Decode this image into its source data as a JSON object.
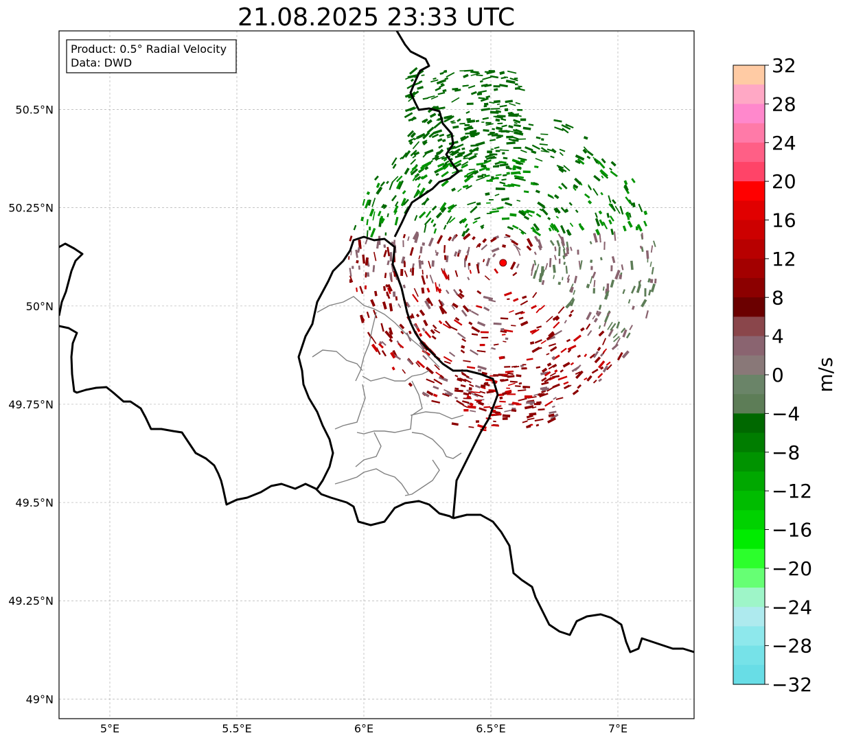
{
  "title": "21.08.2025 23:33 UTC",
  "info_box": {
    "product": "Product: 0.5° Radial Velocity",
    "source": "Data: DWD"
  },
  "map": {
    "lon_range": [
      4.8,
      7.3
    ],
    "lat_range": [
      48.95,
      50.7
    ],
    "lon_ticks": [
      {
        "value": 5.0,
        "label": "5°E"
      },
      {
        "value": 5.5,
        "label": "5.5°E"
      },
      {
        "value": 6.0,
        "label": "6°E"
      },
      {
        "value": 6.5,
        "label": "6.5°E"
      },
      {
        "value": 7.0,
        "label": "7°E"
      }
    ],
    "lat_ticks": [
      {
        "value": 50.5,
        "label": "50.5°N"
      },
      {
        "value": 50.25,
        "label": "50.25°N"
      },
      {
        "value": 50.0,
        "label": "50°N"
      },
      {
        "value": 49.75,
        "label": "49.75°N"
      },
      {
        "value": 49.5,
        "label": "49.5°N"
      },
      {
        "value": 49.25,
        "label": "49.25°N"
      },
      {
        "value": 49.0,
        "label": "49°N"
      }
    ],
    "gridlines": true,
    "radar_site": {
      "lon": 6.548,
      "lat": 50.11,
      "color": "#ff0000"
    }
  },
  "colorbar": {
    "label": "m/s",
    "min": -32,
    "max": 32,
    "step": 2,
    "tick_values": [
      32,
      28,
      24,
      20,
      16,
      12,
      8,
      4,
      0,
      -4,
      -8,
      -12,
      -16,
      -20,
      -24,
      -28,
      -32
    ],
    "tick_labels": [
      "32",
      "28",
      "24",
      "20",
      "16",
      "12",
      "8",
      "4",
      "0",
      "−4",
      "−8",
      "−12",
      "−16",
      "−20",
      "−24",
      "−28",
      "−32"
    ],
    "colors_top_to_bottom": [
      "#ffcba4",
      "#ffa8c5",
      "#ff88cc",
      "#ff7aa8",
      "#ff5f86",
      "#ff4468",
      "#ff0000",
      "#e10000",
      "#cd0000",
      "#b80000",
      "#a30000",
      "#8c0000",
      "#6b0000",
      "#8a464b",
      "#8a6470",
      "#897878",
      "#6a8468",
      "#5d7d57",
      "#006800",
      "#007d00",
      "#009300",
      "#00a800",
      "#00bc00",
      "#00d200",
      "#00ec00",
      "#2cff2c",
      "#66ff74",
      "#9ef5c8",
      "#aeeaee",
      "#8ee8ec",
      "#76e2e8",
      "#68dde6"
    ]
  },
  "velocity_colors": {
    "dark_green": "#006800",
    "green": "#009300",
    "gray_green": "#5d7d57",
    "gray_red": "#8a6470",
    "dark_red": "#8c0000",
    "red": "#cd0000"
  },
  "chart_data": {
    "type": "heatmap",
    "title": "21.08.2025 23:33 UTC",
    "xlabel": "",
    "ylabel": "",
    "colorbar_label": "m/s",
    "range": [
      -32,
      32
    ]
  }
}
